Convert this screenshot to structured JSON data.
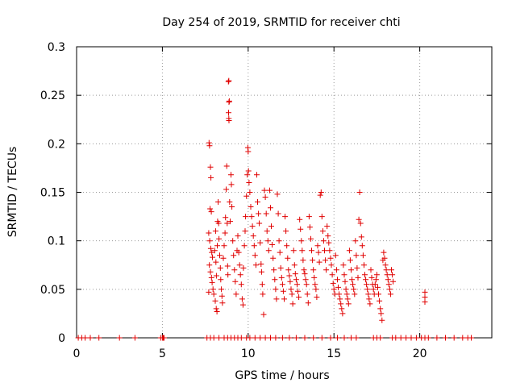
{
  "chart_data": {
    "type": "scatter",
    "title": "Day 254 of 2019, SRMTID for receiver chti",
    "xlabel": "GPS time / hours",
    "ylabel": "SRMTID / TECUs",
    "xlim": [
      0,
      24.2
    ],
    "ylim": [
      0,
      0.3
    ],
    "xticks": [
      0,
      5,
      10,
      15,
      20
    ],
    "yticks": [
      0,
      0.05,
      0.1,
      0.15,
      0.2,
      0.25,
      0.3
    ],
    "xtick_labels": [
      "0",
      "5",
      "10",
      "15",
      "20"
    ],
    "ytick_labels": [
      "0",
      "0.05",
      "0.1",
      "0.15",
      "0.2",
      "0.25",
      "0.3"
    ],
    "grid": true,
    "marker": "+",
    "color": "#e00000",
    "series": [
      {
        "name": "SRMTID",
        "points": [
          [
            0.1,
            0
          ],
          [
            0.3,
            0
          ],
          [
            0.5,
            0
          ],
          [
            0.8,
            0
          ],
          [
            1.3,
            0
          ],
          [
            2.5,
            0
          ],
          [
            3.4,
            0
          ],
          [
            4.9,
            0
          ],
          [
            5.0,
            0
          ],
          [
            5.05,
            0
          ],
          [
            5.1,
            0
          ],
          [
            7.6,
            0
          ],
          [
            7.8,
            0
          ],
          [
            8.0,
            0
          ],
          [
            8.3,
            0
          ],
          [
            8.6,
            0
          ],
          [
            8.8,
            0
          ],
          [
            9.0,
            0
          ],
          [
            9.2,
            0
          ],
          [
            9.4,
            0
          ],
          [
            9.6,
            0
          ],
          [
            9.9,
            0
          ],
          [
            10.1,
            0
          ],
          [
            10.4,
            0
          ],
          [
            10.7,
            0
          ],
          [
            11.0,
            0
          ],
          [
            11.3,
            0
          ],
          [
            11.6,
            0
          ],
          [
            12.0,
            0
          ],
          [
            12.4,
            0
          ],
          [
            12.8,
            0
          ],
          [
            13.3,
            0
          ],
          [
            13.8,
            0
          ],
          [
            14.3,
            0
          ],
          [
            14.8,
            0
          ],
          [
            15.2,
            0
          ],
          [
            15.6,
            0
          ],
          [
            16.0,
            0
          ],
          [
            16.3,
            0
          ],
          [
            17.3,
            0
          ],
          [
            17.5,
            0
          ],
          [
            17.7,
            0
          ],
          [
            18.4,
            0
          ],
          [
            18.6,
            0
          ],
          [
            18.9,
            0
          ],
          [
            19.2,
            0
          ],
          [
            19.5,
            0
          ],
          [
            19.8,
            0
          ],
          [
            20.1,
            0
          ],
          [
            20.3,
            0
          ],
          [
            20.5,
            0
          ],
          [
            21.0,
            0
          ],
          [
            21.5,
            0
          ],
          [
            22.0,
            0
          ],
          [
            22.5,
            0
          ],
          [
            22.8,
            0
          ],
          [
            23.0,
            0
          ],
          [
            7.72,
            0.201
          ],
          [
            7.75,
            0.198
          ],
          [
            7.8,
            0.176
          ],
          [
            7.83,
            0.165
          ],
          [
            7.78,
            0.133
          ],
          [
            7.85,
            0.13
          ],
          [
            7.7,
            0.108
          ],
          [
            7.76,
            0.1
          ],
          [
            7.82,
            0.092
          ],
          [
            7.88,
            0.088
          ],
          [
            7.92,
            0.083
          ],
          [
            7.74,
            0.075
          ],
          [
            7.8,
            0.068
          ],
          [
            7.86,
            0.062
          ],
          [
            7.9,
            0.057
          ],
          [
            7.95,
            0.05
          ],
          [
            7.7,
            0.047
          ],
          [
            8.0,
            0.045
          ],
          [
            8.05,
            0.09
          ],
          [
            8.1,
            0.11
          ],
          [
            8.12,
            0.078
          ],
          [
            8.15,
            0.064
          ],
          [
            8.08,
            0.038
          ],
          [
            8.14,
            0.03
          ],
          [
            8.18,
            0.027
          ],
          [
            8.2,
            0.095
          ],
          [
            8.22,
            0.12
          ],
          [
            8.25,
            0.14
          ],
          [
            8.28,
            0.118
          ],
          [
            8.3,
            0.102
          ],
          [
            8.34,
            0.085
          ],
          [
            8.38,
            0.072
          ],
          [
            8.4,
            0.06
          ],
          [
            8.44,
            0.05
          ],
          [
            8.47,
            0.043
          ],
          [
            8.5,
            0.036
          ],
          [
            8.55,
            0.082
          ],
          [
            8.6,
            0.095
          ],
          [
            8.65,
            0.108
          ],
          [
            8.68,
            0.124
          ],
          [
            8.72,
            0.153
          ],
          [
            8.75,
            0.177
          ],
          [
            8.78,
            0.118
          ],
          [
            8.8,
            0.074
          ],
          [
            8.82,
            0.065
          ],
          [
            8.85,
            0.264
          ],
          [
            8.87,
            0.265
          ],
          [
            8.88,
            0.243
          ],
          [
            8.9,
            0.244
          ],
          [
            8.86,
            0.232
          ],
          [
            8.87,
            0.226
          ],
          [
            8.88,
            0.224
          ],
          [
            8.92,
            0.14
          ],
          [
            8.95,
            0.12
          ],
          [
            9.0,
            0.168
          ],
          [
            9.02,
            0.158
          ],
          [
            9.05,
            0.135
          ],
          [
            9.1,
            0.1
          ],
          [
            9.15,
            0.085
          ],
          [
            9.2,
            0.07
          ],
          [
            9.25,
            0.058
          ],
          [
            9.3,
            0.045
          ],
          [
            9.35,
            0.09
          ],
          [
            9.4,
            0.105
          ],
          [
            9.45,
            0.088
          ],
          [
            9.5,
            0.075
          ],
          [
            9.55,
            0.065
          ],
          [
            9.6,
            0.055
          ],
          [
            9.65,
            0.04
          ],
          [
            9.7,
            0.034
          ],
          [
            9.72,
            0.072
          ],
          [
            9.78,
            0.095
          ],
          [
            9.82,
            0.11
          ],
          [
            9.85,
            0.125
          ],
          [
            9.9,
            0.146
          ],
          [
            9.95,
            0.168
          ],
          [
            9.98,
            0.196
          ],
          [
            10.0,
            0.192
          ],
          [
            10.02,
            0.172
          ],
          [
            10.05,
            0.16
          ],
          [
            10.1,
            0.15
          ],
          [
            10.15,
            0.135
          ],
          [
            10.2,
            0.125
          ],
          [
            10.25,
            0.115
          ],
          [
            10.3,
            0.105
          ],
          [
            10.35,
            0.095
          ],
          [
            10.4,
            0.085
          ],
          [
            10.45,
            0.075
          ],
          [
            10.5,
            0.168
          ],
          [
            10.55,
            0.14
          ],
          [
            10.6,
            0.128
          ],
          [
            10.65,
            0.118
          ],
          [
            10.7,
            0.098
          ],
          [
            10.75,
            0.076
          ],
          [
            10.78,
            0.068
          ],
          [
            10.82,
            0.055
          ],
          [
            10.85,
            0.045
          ],
          [
            10.9,
            0.024
          ],
          [
            10.95,
            0.152
          ],
          [
            11.0,
            0.145
          ],
          [
            11.05,
            0.128
          ],
          [
            11.1,
            0.11
          ],
          [
            11.15,
            0.1
          ],
          [
            11.2,
            0.09
          ],
          [
            11.25,
            0.152
          ],
          [
            11.3,
            0.134
          ],
          [
            11.35,
            0.115
          ],
          [
            11.4,
            0.096
          ],
          [
            11.45,
            0.082
          ],
          [
            11.5,
            0.07
          ],
          [
            11.55,
            0.06
          ],
          [
            11.6,
            0.05
          ],
          [
            11.65,
            0.04
          ],
          [
            11.7,
            0.148
          ],
          [
            11.75,
            0.128
          ],
          [
            11.8,
            0.1
          ],
          [
            11.85,
            0.088
          ],
          [
            11.9,
            0.072
          ],
          [
            11.95,
            0.062
          ],
          [
            12.0,
            0.055
          ],
          [
            12.05,
            0.048
          ],
          [
            12.1,
            0.04
          ],
          [
            12.15,
            0.125
          ],
          [
            12.2,
            0.11
          ],
          [
            12.25,
            0.095
          ],
          [
            12.3,
            0.082
          ],
          [
            12.35,
            0.07
          ],
          [
            12.4,
            0.064
          ],
          [
            12.45,
            0.058
          ],
          [
            12.5,
            0.05
          ],
          [
            12.55,
            0.045
          ],
          [
            12.6,
            0.035
          ],
          [
            12.65,
            0.09
          ],
          [
            12.7,
            0.075
          ],
          [
            12.75,
            0.066
          ],
          [
            12.8,
            0.06
          ],
          [
            12.85,
            0.055
          ],
          [
            12.9,
            0.048
          ],
          [
            12.95,
            0.042
          ],
          [
            13.0,
            0.122
          ],
          [
            13.05,
            0.112
          ],
          [
            13.1,
            0.1
          ],
          [
            13.15,
            0.09
          ],
          [
            13.2,
            0.08
          ],
          [
            13.25,
            0.07
          ],
          [
            13.3,
            0.066
          ],
          [
            13.35,
            0.06
          ],
          [
            13.4,
            0.055
          ],
          [
            13.45,
            0.045
          ],
          [
            13.5,
            0.036
          ],
          [
            13.55,
            0.125
          ],
          [
            13.6,
            0.114
          ],
          [
            13.65,
            0.102
          ],
          [
            13.7,
            0.09
          ],
          [
            13.75,
            0.08
          ],
          [
            13.8,
            0.07
          ],
          [
            13.85,
            0.062
          ],
          [
            13.9,
            0.055
          ],
          [
            13.95,
            0.05
          ],
          [
            14.0,
            0.042
          ],
          [
            14.05,
            0.095
          ],
          [
            14.1,
            0.088
          ],
          [
            14.15,
            0.078
          ],
          [
            14.2,
            0.147
          ],
          [
            14.25,
            0.15
          ],
          [
            14.3,
            0.125
          ],
          [
            14.35,
            0.11
          ],
          [
            14.4,
            0.1
          ],
          [
            14.45,
            0.09
          ],
          [
            14.5,
            0.08
          ],
          [
            14.55,
            0.07
          ],
          [
            14.6,
            0.115
          ],
          [
            14.65,
            0.105
          ],
          [
            14.7,
            0.098
          ],
          [
            14.75,
            0.09
          ],
          [
            14.8,
            0.082
          ],
          [
            14.85,
            0.075
          ],
          [
            14.9,
            0.065
          ],
          [
            14.95,
            0.056
          ],
          [
            15.0,
            0.05
          ],
          [
            15.05,
            0.045
          ],
          [
            15.1,
            0.085
          ],
          [
            15.15,
            0.07
          ],
          [
            15.2,
            0.06
          ],
          [
            15.25,
            0.052
          ],
          [
            15.3,
            0.045
          ],
          [
            15.35,
            0.04
          ],
          [
            15.4,
            0.035
          ],
          [
            15.45,
            0.03
          ],
          [
            15.5,
            0.025
          ],
          [
            15.55,
            0.075
          ],
          [
            15.6,
            0.065
          ],
          [
            15.65,
            0.058
          ],
          [
            15.7,
            0.05
          ],
          [
            15.75,
            0.045
          ],
          [
            15.8,
            0.04
          ],
          [
            15.85,
            0.035
          ],
          [
            15.9,
            0.09
          ],
          [
            15.95,
            0.08
          ],
          [
            16.0,
            0.07
          ],
          [
            16.05,
            0.06
          ],
          [
            16.1,
            0.055
          ],
          [
            16.15,
            0.05
          ],
          [
            16.2,
            0.045
          ],
          [
            16.25,
            0.1
          ],
          [
            16.3,
            0.085
          ],
          [
            16.35,
            0.072
          ],
          [
            16.4,
            0.062
          ],
          [
            16.45,
            0.122
          ],
          [
            16.5,
            0.15
          ],
          [
            16.55,
            0.118
          ],
          [
            16.6,
            0.104
          ],
          [
            16.65,
            0.095
          ],
          [
            16.7,
            0.085
          ],
          [
            16.75,
            0.075
          ],
          [
            16.8,
            0.065
          ],
          [
            16.85,
            0.06
          ],
          [
            16.9,
            0.055
          ],
          [
            16.95,
            0.05
          ],
          [
            17.0,
            0.045
          ],
          [
            17.05,
            0.04
          ],
          [
            17.1,
            0.035
          ],
          [
            17.15,
            0.07
          ],
          [
            17.2,
            0.062
          ],
          [
            17.25,
            0.055
          ],
          [
            17.3,
            0.05
          ],
          [
            17.35,
            0.045
          ],
          [
            17.4,
            0.055
          ],
          [
            17.45,
            0.06
          ],
          [
            17.5,
            0.065
          ],
          [
            17.55,
            0.052
          ],
          [
            17.6,
            0.045
          ],
          [
            17.65,
            0.038
          ],
          [
            17.7,
            0.03
          ],
          [
            17.75,
            0.025
          ],
          [
            17.8,
            0.018
          ],
          [
            17.85,
            0.08
          ],
          [
            17.9,
            0.088
          ],
          [
            17.95,
            0.082
          ],
          [
            18.0,
            0.075
          ],
          [
            18.05,
            0.07
          ],
          [
            18.1,
            0.065
          ],
          [
            18.15,
            0.06
          ],
          [
            18.2,
            0.055
          ],
          [
            18.25,
            0.05
          ],
          [
            18.3,
            0.045
          ],
          [
            18.35,
            0.07
          ],
          [
            18.4,
            0.065
          ],
          [
            18.45,
            0.058
          ],
          [
            20.3,
            0.047
          ],
          [
            20.3,
            0.042
          ],
          [
            20.3,
            0.037
          ]
        ]
      }
    ]
  }
}
